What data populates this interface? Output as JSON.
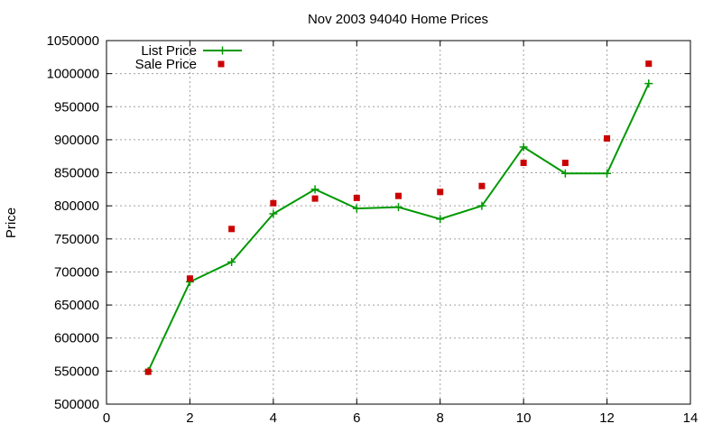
{
  "chart_data": {
    "type": "line",
    "title": "Nov 2003 94040 Home Prices",
    "xlabel": "",
    "ylabel": "Price",
    "xlim": [
      0,
      14
    ],
    "ylim": [
      500000,
      1050000
    ],
    "x_ticks": [
      "0",
      "2",
      "4",
      "6",
      "8",
      "10",
      "12",
      "14"
    ],
    "y_ticks": [
      "500000",
      "550000",
      "600000",
      "650000",
      "700000",
      "750000",
      "800000",
      "850000",
      "900000",
      "950000",
      "1000000",
      "1050000"
    ],
    "grid": true,
    "legend_position": "top-left",
    "x": [
      1,
      2,
      3,
      4,
      5,
      6,
      7,
      8,
      9,
      10,
      11,
      12,
      13
    ],
    "series": [
      {
        "name": "List Price",
        "style": "lines+points",
        "marker": "plus",
        "color": "#009900",
        "values": [
          550000,
          685000,
          715000,
          788000,
          825000,
          796000,
          798000,
          780000,
          800000,
          889000,
          849000,
          849000,
          985000
        ]
      },
      {
        "name": "Sale Price",
        "style": "points",
        "marker": "square",
        "color": "#cc0000",
        "values": [
          549000,
          690000,
          765000,
          804000,
          811000,
          812000,
          815000,
          821000,
          830000,
          865000,
          865000,
          902000,
          1015000
        ]
      }
    ]
  }
}
